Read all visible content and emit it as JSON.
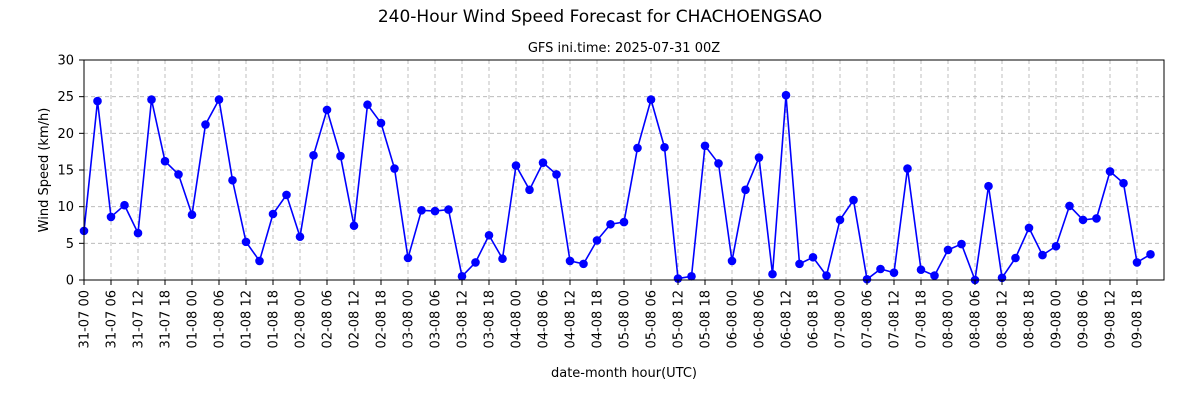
{
  "colors": {
    "series": "#0000ff",
    "background": "#ffffff",
    "grid": "#b0b0b0"
  },
  "chart_data": {
    "type": "line",
    "title": "240-Hour Wind Speed Forecast for CHACHOENGSAO",
    "subtitle": "GFS ini.time: 2025-07-31 00Z",
    "xlabel": "date-month hour(UTC)",
    "ylabel": "Wind Speed (km/h)",
    "ylim": [
      0,
      30
    ],
    "yticks": [
      0,
      5,
      10,
      15,
      20,
      25,
      30
    ],
    "grid": true,
    "x_step_hours": 3,
    "xtick_every": 2,
    "xtick_labels": [
      "31-07 00",
      "31-07 06",
      "31-07 12",
      "31-07 18",
      "01-08 00",
      "01-08 06",
      "01-08 12",
      "01-08 18",
      "02-08 00",
      "02-08 06",
      "02-08 12",
      "02-08 18",
      "03-08 00",
      "03-08 06",
      "03-08 12",
      "03-08 18",
      "04-08 00",
      "04-08 06",
      "04-08 12",
      "04-08 18",
      "05-08 00",
      "05-08 06",
      "05-08 12",
      "05-08 18",
      "06-08 00",
      "06-08 06",
      "06-08 12",
      "06-08 18",
      "07-08 00",
      "07-08 06",
      "07-08 12",
      "07-08 18",
      "08-08 00",
      "08-08 06",
      "08-08 12",
      "08-08 18",
      "09-08 00",
      "09-08 06",
      "09-08 12",
      "09-08 18"
    ],
    "series": [
      {
        "color": "#0000ff",
        "values": [
          6.7,
          24.4,
          8.6,
          10.2,
          6.4,
          24.6,
          16.2,
          14.4,
          8.9,
          21.2,
          24.6,
          13.6,
          5.2,
          2.6,
          9.0,
          11.6,
          5.9,
          17.0,
          23.2,
          16.9,
          7.4,
          23.9,
          21.4,
          15.2,
          3.0,
          9.5,
          9.4,
          9.6,
          0.5,
          2.4,
          6.1,
          2.9,
          15.6,
          12.3,
          16.0,
          14.4,
          2.6,
          2.2,
          5.4,
          7.6,
          7.9,
          18.0,
          24.6,
          18.1,
          0.2,
          0.5,
          18.3,
          15.9,
          2.6,
          12.3,
          16.7,
          0.8,
          25.2,
          2.2,
          3.1,
          0.6,
          8.2,
          10.9,
          0.1,
          1.5,
          1.0,
          15.2,
          1.4,
          0.6,
          4.1,
          4.9,
          0.0,
          12.8,
          0.3,
          3.0,
          7.1,
          3.4,
          4.6,
          10.1,
          8.2,
          8.4,
          14.8,
          13.2,
          2.4,
          3.5
        ]
      }
    ]
  }
}
